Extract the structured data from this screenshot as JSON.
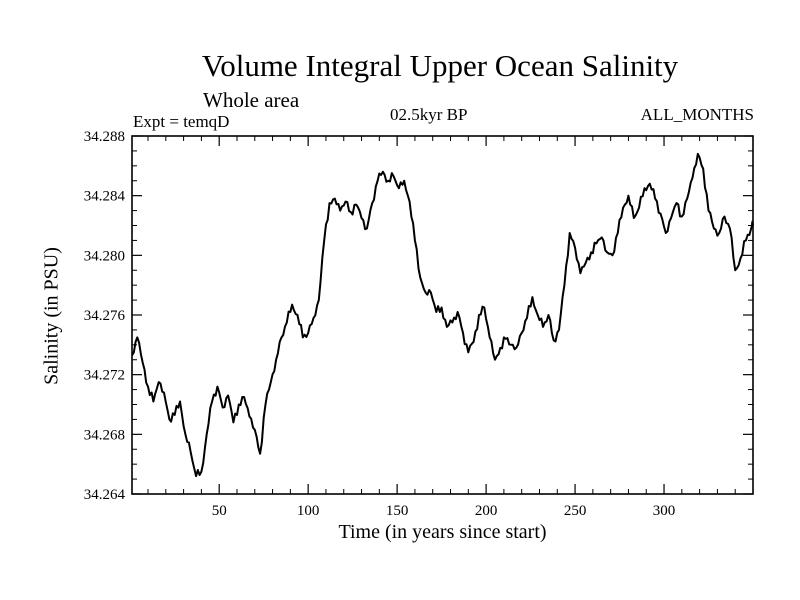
{
  "chart_data": {
    "type": "line",
    "title": "Volume Integral Upper Ocean Salinity",
    "subtitle": "Whole area",
    "left_label": "Expt = temqD",
    "center_label": "02.5kyr BP",
    "right_label": "ALL_MONTHS",
    "xlabel": "Time (in years since start)",
    "ylabel": "Salinity (in PSU)",
    "xlim": [
      1,
      350
    ],
    "ylim": [
      34.264,
      34.288
    ],
    "x_ticks": [
      50,
      100,
      150,
      200,
      250,
      300
    ],
    "y_ticks": [
      "34.264",
      "34.268",
      "34.272",
      "34.276",
      "34.280",
      "34.284",
      "34.288"
    ],
    "x_minor_step": 10,
    "y_minor_step": 0.001,
    "grid": false,
    "series": [
      {
        "name": "Salinity",
        "color": "#000000",
        "x": [
          1,
          4,
          7,
          10,
          13,
          16,
          19,
          22,
          25,
          28,
          31,
          34,
          37,
          40,
          43,
          46,
          49,
          52,
          55,
          58,
          61,
          64,
          67,
          70,
          73,
          76,
          79,
          82,
          85,
          88,
          91,
          94,
          97,
          100,
          103,
          106,
          109,
          112,
          115,
          118,
          121,
          124,
          127,
          130,
          133,
          136,
          139,
          142,
          145,
          148,
          151,
          154,
          157,
          160,
          163,
          166,
          169,
          172,
          175,
          178,
          181,
          184,
          187,
          190,
          193,
          196,
          199,
          202,
          205,
          208,
          211,
          214,
          217,
          220,
          223,
          226,
          229,
          232,
          235,
          238,
          241,
          244,
          247,
          250,
          253,
          256,
          259,
          262,
          265,
          268,
          271,
          274,
          277,
          280,
          283,
          286,
          289,
          292,
          295,
          298,
          301,
          304,
          307,
          310,
          313,
          316,
          319,
          322,
          325,
          328,
          331,
          334,
          337,
          340,
          343,
          346,
          349,
          350
        ],
        "values": [
          34.2733,
          34.2745,
          34.2728,
          34.2712,
          34.2702,
          34.2715,
          34.2708,
          34.269,
          34.2693,
          34.2702,
          34.268,
          34.2668,
          34.2652,
          34.2655,
          34.268,
          34.2702,
          34.2712,
          34.2698,
          34.2706,
          34.2688,
          34.27,
          34.2705,
          34.2692,
          34.2683,
          34.2667,
          34.27,
          34.2715,
          34.273,
          34.2745,
          34.2755,
          34.2767,
          34.276,
          34.2745,
          34.2748,
          34.2758,
          34.277,
          34.281,
          34.2835,
          34.2838,
          34.283,
          34.2836,
          34.2829,
          34.2834,
          34.2825,
          34.2818,
          34.2835,
          34.285,
          34.2856,
          34.285,
          34.2853,
          34.2845,
          34.285,
          34.2836,
          34.281,
          34.2785,
          34.2775,
          34.2775,
          34.2762,
          34.2765,
          34.2752,
          34.2755,
          34.2762,
          34.2748,
          34.2735,
          34.2742,
          34.276,
          34.2765,
          34.2745,
          34.273,
          34.2738,
          34.2744,
          34.274,
          34.2738,
          34.2748,
          34.2758,
          34.2772,
          34.276,
          34.2752,
          34.276,
          34.2743,
          34.275,
          34.278,
          34.2815,
          34.2805,
          34.2788,
          34.2795,
          34.2802,
          34.2808,
          34.2812,
          34.2802,
          34.28,
          34.2815,
          34.2832,
          34.284,
          34.2825,
          34.2832,
          34.2845,
          34.2848,
          34.2838,
          34.2828,
          34.2815,
          34.2825,
          34.2835,
          34.2826,
          34.2838,
          34.2852,
          34.2868,
          34.2858,
          34.283,
          34.2818,
          34.2815,
          34.2826,
          34.2818,
          34.279,
          34.2798,
          34.281,
          34.2818,
          34.282
        ]
      }
    ]
  }
}
